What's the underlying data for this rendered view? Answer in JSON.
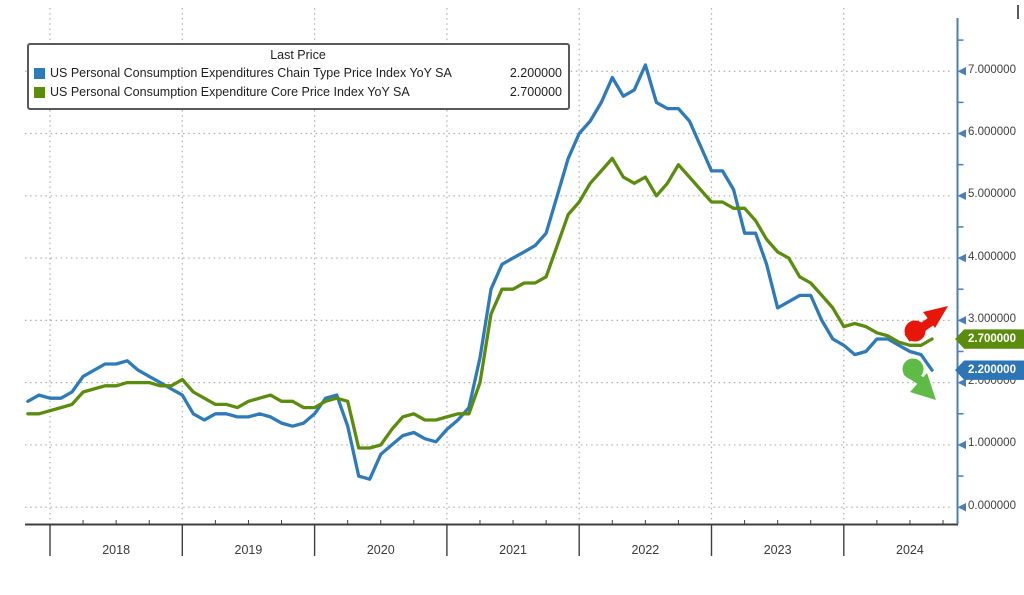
{
  "legend": {
    "title": "Last Price",
    "items": [
      {
        "label": "US Personal Consumption Expenditures Chain Type Price Index YoY SA",
        "value": "2.200000",
        "color": "#2f7ab8"
      },
      {
        "label": "US Personal Consumption Expenditure Core Price Index YoY SA",
        "value": "2.700000",
        "color": "#5b8c0e"
      }
    ]
  },
  "axis_tags": [
    {
      "value": "2.700000",
      "y_value": 2.7,
      "color": "#5b8c0e"
    },
    {
      "value": "2.200000",
      "y_value": 2.2,
      "color": "#2e75b6"
    }
  ],
  "annotations": [
    {
      "name": "trend-up-arrow",
      "direction": "up-right",
      "color": "#e81509"
    },
    {
      "name": "trend-down-arrow",
      "direction": "down-right",
      "color": "#5dbb46"
    }
  ],
  "colors": {
    "background": "#ffffff",
    "gridline": "#adadad",
    "x_axis": "#3f3f3f",
    "y_axis": "#4a7ebb",
    "y_label_text": "#3e3e3e",
    "x_label_text": "#3a3a3a"
  },
  "chart_data": {
    "type": "line",
    "title": "Last Price",
    "frequency": "monthly",
    "start_period": "2017-10",
    "end_period": "2024-08",
    "xlabel": "",
    "ylabel": "",
    "ylim": [
      0,
      7.6
    ],
    "grid": "dotted-both",
    "legend_position": "top-left",
    "x_tick_labels": [
      "2018",
      "2019",
      "2020",
      "2021",
      "2022",
      "2023",
      "2024"
    ],
    "y_ticks": [
      0,
      1,
      2,
      3,
      4,
      5,
      6,
      7
    ],
    "y_tick_labels": [
      "0.000000",
      "1.000000",
      "2.000000",
      "3.000000",
      "4.000000",
      "5.000000",
      "6.000000",
      "7.000000"
    ],
    "y_minor_tick_step": 0.5,
    "series": [
      {
        "name": "US Personal Consumption Expenditures Chain Type Price Index YoY SA",
        "color": "#2f7ab8",
        "last_value": 2.2,
        "values": [
          1.7,
          1.8,
          1.75,
          1.75,
          1.85,
          2.1,
          2.2,
          2.3,
          2.3,
          2.35,
          2.2,
          2.1,
          2.0,
          1.9,
          1.8,
          1.5,
          1.4,
          1.5,
          1.5,
          1.45,
          1.45,
          1.5,
          1.45,
          1.35,
          1.3,
          1.35,
          1.5,
          1.75,
          1.8,
          1.3,
          0.5,
          0.45,
          0.85,
          1.0,
          1.15,
          1.2,
          1.1,
          1.05,
          1.25,
          1.4,
          1.6,
          2.4,
          3.5,
          3.9,
          4.0,
          4.1,
          4.2,
          4.4,
          5.0,
          5.6,
          6.0,
          6.2,
          6.5,
          6.9,
          6.6,
          6.7,
          7.1,
          6.5,
          6.4,
          6.4,
          6.2,
          5.8,
          5.4,
          5.4,
          5.1,
          4.4,
          4.4,
          3.9,
          3.2,
          3.3,
          3.4,
          3.4,
          3.0,
          2.7,
          2.6,
          2.45,
          2.5,
          2.7,
          2.7,
          2.6,
          2.5,
          2.45,
          2.2
        ]
      },
      {
        "name": "US Personal Consumption Expenditure Core Price Index YoY SA",
        "color": "#5b8c0e",
        "last_value": 2.7,
        "values": [
          1.5,
          1.5,
          1.55,
          1.6,
          1.65,
          1.85,
          1.9,
          1.95,
          1.95,
          2.0,
          2.0,
          2.0,
          1.95,
          1.95,
          2.05,
          1.85,
          1.75,
          1.65,
          1.65,
          1.6,
          1.7,
          1.75,
          1.8,
          1.7,
          1.7,
          1.6,
          1.6,
          1.7,
          1.75,
          1.7,
          0.95,
          0.95,
          1.0,
          1.25,
          1.45,
          1.5,
          1.4,
          1.4,
          1.45,
          1.5,
          1.5,
          2.0,
          3.1,
          3.5,
          3.5,
          3.6,
          3.6,
          3.7,
          4.2,
          4.7,
          4.9,
          5.2,
          5.4,
          5.6,
          5.3,
          5.2,
          5.3,
          5.0,
          5.2,
          5.5,
          5.3,
          5.1,
          4.9,
          4.9,
          4.8,
          4.8,
          4.6,
          4.3,
          4.1,
          4.0,
          3.7,
          3.6,
          3.4,
          3.2,
          2.9,
          2.95,
          2.9,
          2.8,
          2.75,
          2.65,
          2.6,
          2.6,
          2.7
        ]
      }
    ]
  }
}
